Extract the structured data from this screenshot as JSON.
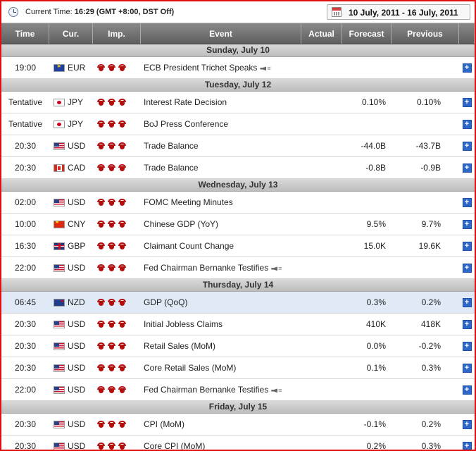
{
  "header": {
    "current_time_label": "Current Time:",
    "current_time_value": "16:29",
    "timezone": "(GMT +8:00, DST Off)",
    "date_range": "10 July, 2011 - 16 July, 2011"
  },
  "columns": {
    "time": "Time",
    "currency": "Cur.",
    "importance": "Imp.",
    "event": "Event",
    "actual": "Actual",
    "forecast": "Forecast",
    "previous": "Previous"
  },
  "add_symbol": "+",
  "days": [
    {
      "label": "Sunday, July 10",
      "events": [
        {
          "time": "19:00",
          "currency": "EUR",
          "flag": "eu",
          "event": "ECB President Trichet Speaks",
          "speech": true,
          "actual": "",
          "forecast": "",
          "previous": ""
        }
      ]
    },
    {
      "label": "Tuesday, July 12",
      "events": [
        {
          "time": "Tentative",
          "currency": "JPY",
          "flag": "jp",
          "event": "Interest Rate Decision",
          "actual": "",
          "forecast": "0.10%",
          "previous": "0.10%"
        },
        {
          "time": "Tentative",
          "currency": "JPY",
          "flag": "jp",
          "event": "BoJ Press Conference",
          "actual": "",
          "forecast": "",
          "previous": ""
        },
        {
          "time": "20:30",
          "currency": "USD",
          "flag": "us",
          "event": "Trade Balance",
          "actual": "",
          "forecast": "-44.0B",
          "previous": "-43.7B"
        },
        {
          "time": "20:30",
          "currency": "CAD",
          "flag": "ca",
          "event": "Trade Balance",
          "actual": "",
          "forecast": "-0.8B",
          "previous": "-0.9B"
        }
      ]
    },
    {
      "label": "Wednesday, July 13",
      "events": [
        {
          "time": "02:00",
          "currency": "USD",
          "flag": "us",
          "event": "FOMC Meeting Minutes",
          "actual": "",
          "forecast": "",
          "previous": ""
        },
        {
          "time": "10:00",
          "currency": "CNY",
          "flag": "cn",
          "event": "Chinese GDP (YoY)",
          "actual": "",
          "forecast": "9.5%",
          "previous": "9.7%"
        },
        {
          "time": "16:30",
          "currency": "GBP",
          "flag": "gb",
          "event": "Claimant Count Change",
          "actual": "",
          "forecast": "15.0K",
          "previous": "19.6K"
        },
        {
          "time": "22:00",
          "currency": "USD",
          "flag": "us",
          "event": "Fed Chairman Bernanke Testifies",
          "speech": true,
          "actual": "",
          "forecast": "",
          "previous": ""
        }
      ]
    },
    {
      "label": "Thursday, July 14",
      "events": [
        {
          "time": "06:45",
          "currency": "NZD",
          "flag": "nz",
          "event": "GDP (QoQ)",
          "actual": "",
          "forecast": "0.3%",
          "previous": "0.2%",
          "highlight": true
        },
        {
          "time": "20:30",
          "currency": "USD",
          "flag": "us",
          "event": "Initial Jobless Claims",
          "actual": "",
          "forecast": "410K",
          "previous": "418K"
        },
        {
          "time": "20:30",
          "currency": "USD",
          "flag": "us",
          "event": "Retail Sales (MoM)",
          "actual": "",
          "forecast": "0.0%",
          "previous": "-0.2%"
        },
        {
          "time": "20:30",
          "currency": "USD",
          "flag": "us",
          "event": "Core Retail Sales (MoM)",
          "actual": "",
          "forecast": "0.1%",
          "previous": "0.3%"
        },
        {
          "time": "22:00",
          "currency": "USD",
          "flag": "us",
          "event": "Fed Chairman Bernanke Testifies",
          "speech": true,
          "actual": "",
          "forecast": "",
          "previous": ""
        }
      ]
    },
    {
      "label": "Friday, July 15",
      "events": [
        {
          "time": "20:30",
          "currency": "USD",
          "flag": "us",
          "event": "CPI (MoM)",
          "actual": "",
          "forecast": "-0.1%",
          "previous": "0.2%"
        },
        {
          "time": "20:30",
          "currency": "USD",
          "flag": "us",
          "event": "Core CPI (MoM)",
          "actual": "",
          "forecast": "0.2%",
          "previous": "0.3%"
        }
      ]
    }
  ]
}
